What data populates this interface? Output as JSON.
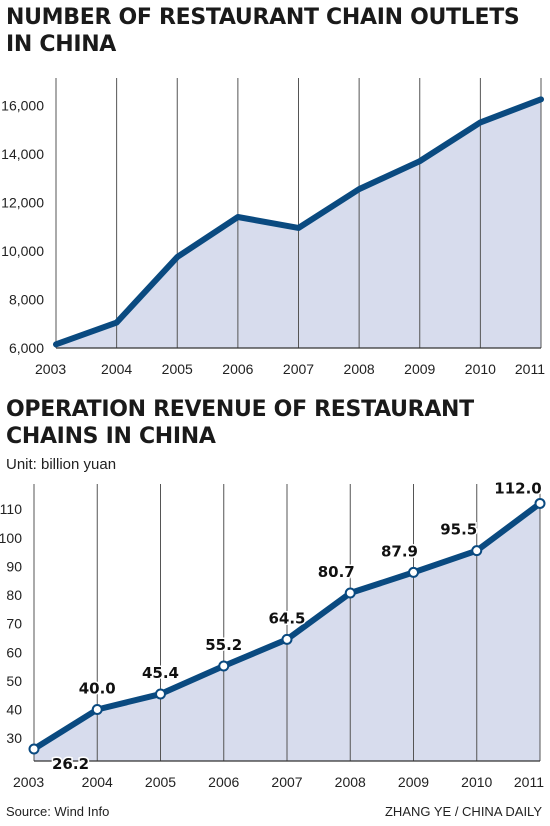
{
  "chart_data": [
    {
      "type": "area",
      "title": "NUMBER OF RESTAURANT CHAIN OUTLETS IN CHINA",
      "x": [
        "2003",
        "2004",
        "2005",
        "2006",
        "2007",
        "2008",
        "2009",
        "2010",
        "2011"
      ],
      "series": [
        {
          "values": [
            6150,
            7050,
            9750,
            11400,
            10950,
            12550,
            13700,
            15300,
            16250
          ]
        }
      ],
      "yticks": [
        "6,000",
        "8,000",
        "10,000",
        "12,000",
        "14,000",
        "16,000"
      ],
      "ylim": [
        6000,
        16800
      ],
      "grid": "vertical",
      "line_color": "#0a4a80",
      "fill_color": "#d7dced"
    },
    {
      "type": "area",
      "title": "OPERATION REVENUE OF RESTAURANT CHAINS IN CHINA",
      "subtitle": "Unit: billion yuan",
      "x": [
        "2003",
        "2004",
        "2005",
        "2006",
        "2007",
        "2008",
        "2009",
        "2010",
        "2011"
      ],
      "series": [
        {
          "values": [
            26.2,
            40.0,
            45.4,
            55.2,
            64.5,
            80.7,
            87.9,
            95.5,
            112.0
          ]
        }
      ],
      "data_labels": [
        "26.2",
        "40.0",
        "45.4",
        "55.2",
        "64.5",
        "80.7",
        "87.9",
        "95.5",
        "112.0"
      ],
      "yticks": [
        "30",
        "40",
        "50",
        "60",
        "70",
        "80",
        "90",
        "100",
        "110"
      ],
      "ylim": [
        22,
        116
      ],
      "grid": "vertical",
      "line_color": "#0a4a80",
      "fill_color": "#d7dced"
    }
  ],
  "footer": {
    "source": "Source: Wind Info",
    "credit": "ZHANG YE / CHINA DAILY"
  }
}
